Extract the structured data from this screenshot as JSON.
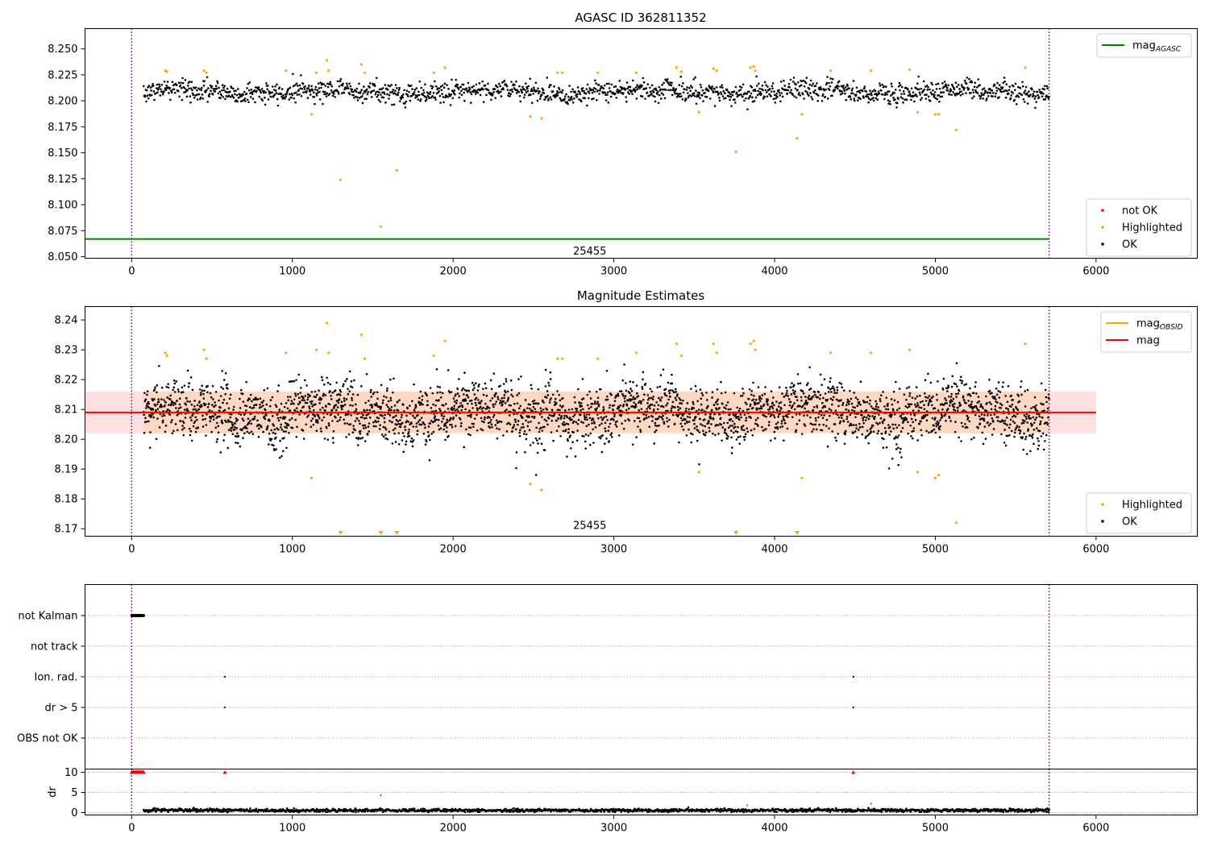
{
  "chart_data": [
    {
      "type": "scatter",
      "title": "AGASC ID 362811352",
      "xlim": [
        -290,
        6630
      ],
      "ylim": [
        8.0485,
        8.2695
      ],
      "xticks": [
        0,
        1000,
        2000,
        3000,
        4000,
        5000,
        6000
      ],
      "xtick_labels": [
        "0",
        "1000",
        "2000",
        "3000",
        "4000",
        "5000",
        "6000"
      ],
      "yticks": [
        8.05,
        8.075,
        8.1,
        8.125,
        8.15,
        8.175,
        8.2,
        8.225,
        8.25
      ],
      "ytick_labels": [
        "8.050",
        "8.075",
        "8.100",
        "8.125",
        "8.150",
        "8.175",
        "8.200",
        "8.225",
        "8.250"
      ],
      "obsid_boundaries": [
        0,
        5708
      ],
      "obsid_label": "25455",
      "obsid_label_x": 2850,
      "obsid_label_y": 8.055,
      "mag_agasc": 8.067,
      "ok_series": {
        "name": "OK",
        "x_range": [
          75,
          5708
        ],
        "count": 1700,
        "center": 8.209,
        "spread": 0.0065,
        "color": "#000000"
      },
      "highlighted_points": [
        [
          210,
          8.229
        ],
        [
          220,
          8.228
        ],
        [
          450,
          8.229
        ],
        [
          465,
          8.227
        ],
        [
          960,
          8.229
        ],
        [
          1120,
          8.187
        ],
        [
          1150,
          8.227
        ],
        [
          1215,
          8.239
        ],
        [
          1225,
          8.229
        ],
        [
          1300,
          8.124
        ],
        [
          1430,
          8.235
        ],
        [
          1450,
          8.227
        ],
        [
          1550,
          8.079
        ],
        [
          1650,
          8.133
        ],
        [
          1880,
          8.227
        ],
        [
          1950,
          8.232
        ],
        [
          2480,
          8.185
        ],
        [
          2550,
          8.183
        ],
        [
          2650,
          8.227
        ],
        [
          2680,
          8.227
        ],
        [
          2900,
          8.227
        ],
        [
          3140,
          8.227
        ],
        [
          3390,
          8.232
        ],
        [
          3420,
          8.228
        ],
        [
          3530,
          8.189
        ],
        [
          3620,
          8.231
        ],
        [
          3640,
          8.229
        ],
        [
          3760,
          8.151
        ],
        [
          3850,
          8.232
        ],
        [
          3870,
          8.233
        ],
        [
          3880,
          8.229
        ],
        [
          4140,
          8.164
        ],
        [
          4170,
          8.187
        ],
        [
          4350,
          8.229
        ],
        [
          4600,
          8.229
        ],
        [
          4840,
          8.23
        ],
        [
          4890,
          8.189
        ],
        [
          5000,
          8.187
        ],
        [
          5020,
          8.187
        ],
        [
          5130,
          8.172
        ],
        [
          5560,
          8.232
        ]
      ],
      "legends": [
        {
          "entries": [
            {
              "label": "mag",
              "sub": "AGASC",
              "color": "#008000",
              "kind": "line"
            }
          ],
          "placement": "upper right"
        },
        {
          "entries": [
            {
              "label": "not OK",
              "color": "#ff0000",
              "kind": "point"
            },
            {
              "label": "Highlighted",
              "color": "#ffa500",
              "kind": "point"
            },
            {
              "label": "OK",
              "color": "#000000",
              "kind": "point"
            }
          ],
          "placement": "lower right"
        }
      ]
    },
    {
      "type": "scatter",
      "title": "Magnitude Estimates",
      "xlim": [
        -290,
        6630
      ],
      "ylim": [
        8.1675,
        8.2445
      ],
      "xticks": [
        0,
        1000,
        2000,
        3000,
        4000,
        5000,
        6000
      ],
      "xtick_labels": [
        "0",
        "1000",
        "2000",
        "3000",
        "4000",
        "5000",
        "6000"
      ],
      "yticks": [
        8.17,
        8.18,
        8.19,
        8.2,
        8.21,
        8.22,
        8.23,
        8.24
      ],
      "ytick_labels": [
        "8.17",
        "8.18",
        "8.19",
        "8.20",
        "8.21",
        "8.22",
        "8.23",
        "8.24"
      ],
      "obsid_boundaries": [
        0,
        5708
      ],
      "obsid_label": "25455",
      "obsid_label_x": 2850,
      "obsid_label_y": 8.171,
      "mag": 8.209,
      "mag_band": [
        8.202,
        8.216
      ],
      "mag_obsid": 8.209,
      "band_x": [
        0,
        6000
      ],
      "ok_series": {
        "name": "OK",
        "x_range": [
          75,
          5708
        ],
        "count": 3000,
        "center": 8.209,
        "spread": 0.0065,
        "color": "#000000"
      },
      "highlighted_points": [
        [
          210,
          8.229
        ],
        [
          220,
          8.228
        ],
        [
          450,
          8.23
        ],
        [
          465,
          8.227
        ],
        [
          960,
          8.229
        ],
        [
          1120,
          8.187
        ],
        [
          1150,
          8.23
        ],
        [
          1215,
          8.239
        ],
        [
          1225,
          8.229
        ],
        [
          1430,
          8.235
        ],
        [
          1450,
          8.227
        ],
        [
          1880,
          8.228
        ],
        [
          1950,
          8.233
        ],
        [
          2480,
          8.185
        ],
        [
          2550,
          8.183
        ],
        [
          2650,
          8.227
        ],
        [
          2680,
          8.227
        ],
        [
          2900,
          8.227
        ],
        [
          3140,
          8.229
        ],
        [
          3390,
          8.232
        ],
        [
          3420,
          8.228
        ],
        [
          3530,
          8.189
        ],
        [
          3620,
          8.232
        ],
        [
          3640,
          8.229
        ],
        [
          3850,
          8.232
        ],
        [
          3870,
          8.233
        ],
        [
          3880,
          8.23
        ],
        [
          4170,
          8.187
        ],
        [
          4350,
          8.229
        ],
        [
          4600,
          8.229
        ],
        [
          4840,
          8.23
        ],
        [
          4890,
          8.189
        ],
        [
          5000,
          8.187
        ],
        [
          5020,
          8.188
        ],
        [
          5130,
          8.172
        ],
        [
          5560,
          8.232
        ]
      ],
      "clipped_markers": [
        1300,
        1550,
        1650,
        3760,
        4140
      ],
      "legends": [
        {
          "entries": [
            {
              "label": "mag",
              "sub": "OBSID",
              "color": "#ffa500",
              "kind": "line"
            },
            {
              "label": "mag",
              "color": "#ff0000",
              "kind": "line"
            }
          ],
          "placement": "upper right"
        },
        {
          "entries": [
            {
              "label": "Highlighted",
              "color": "#ffa500",
              "kind": "point"
            },
            {
              "label": "OK",
              "color": "#000000",
              "kind": "point"
            }
          ],
          "placement": "lower right"
        }
      ]
    },
    {
      "type": "scatter",
      "title": "",
      "xlim": [
        -290,
        6630
      ],
      "categories": [
        "not Kalman",
        "not track",
        "Ion. rad.",
        "dr > 5",
        "OBS not OK"
      ],
      "obsid_boundaries": [
        0,
        5708
      ],
      "flags": {
        "not Kalman": {
          "x_range": [
            0,
            75
          ],
          "count": 40
        },
        "not track": [],
        "Ion. rad.": [
          580,
          4490
        ],
        "dr > 5": [
          580,
          4490
        ],
        "OBS not OK": []
      }
    },
    {
      "type": "scatter",
      "title": "",
      "ylabel": "dr",
      "xlim": [
        -290,
        6630
      ],
      "ylim": [
        -0.6,
        10.8
      ],
      "xticks": [
        0,
        1000,
        2000,
        3000,
        4000,
        5000,
        6000
      ],
      "xtick_labels": [
        "0",
        "1000",
        "2000",
        "3000",
        "4000",
        "5000",
        "6000"
      ],
      "yticks": [
        0,
        5,
        10
      ],
      "ytick_labels": [
        "0",
        "5",
        "10"
      ],
      "obsid_boundaries": [
        0,
        5708
      ],
      "clipped_marker_value": 10,
      "clipped_markers": {
        "x_range": [
          0,
          75
        ],
        "count": 30,
        "extra": [
          580,
          4490
        ]
      },
      "red_points": [
        [
          1550,
          4.3
        ],
        [
          3830,
          1.8
        ],
        [
          4600,
          2.2
        ]
      ],
      "ok_series": {
        "name": "OK",
        "x_range": [
          75,
          5708
        ],
        "count": 1700,
        "center": 0.55,
        "spread": 0.25
      }
    }
  ]
}
